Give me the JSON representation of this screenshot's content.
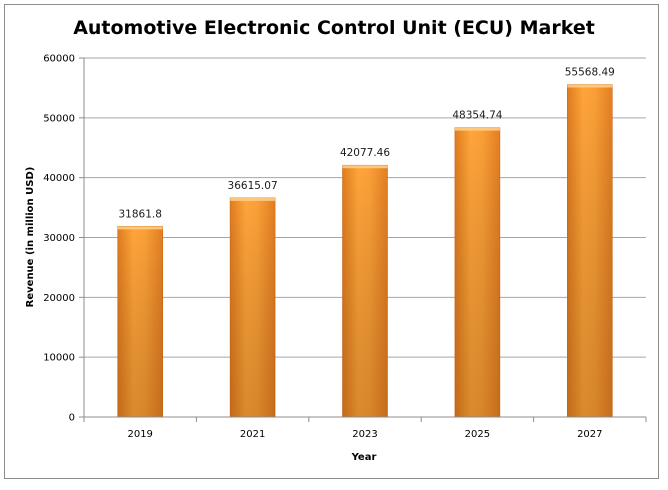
{
  "chart_data": {
    "type": "bar",
    "title": "Automotive Electronic Control Unit (ECU) Market",
    "xlabel": "Year",
    "ylabel": "Revenue (in million USD)",
    "categories": [
      "2019",
      "2021",
      "2023",
      "2025",
      "2027"
    ],
    "values": [
      31861.8,
      36615.07,
      42077.46,
      48354.74,
      55568.49
    ],
    "data_labels": [
      "31861.8",
      "36615.07",
      "42077.46",
      "48354.74",
      "55568.49"
    ],
    "ylim": [
      0,
      60000
    ],
    "yticks": [
      0,
      10000,
      20000,
      30000,
      40000,
      50000,
      60000
    ],
    "grid": true,
    "legend": "none",
    "colors": {
      "bar_light": "#ffb347",
      "bar_mid": "#f7941d",
      "bar_dark": "#d9731a",
      "grid": "#a6a6a6",
      "axis": "#8c8c8c"
    }
  }
}
